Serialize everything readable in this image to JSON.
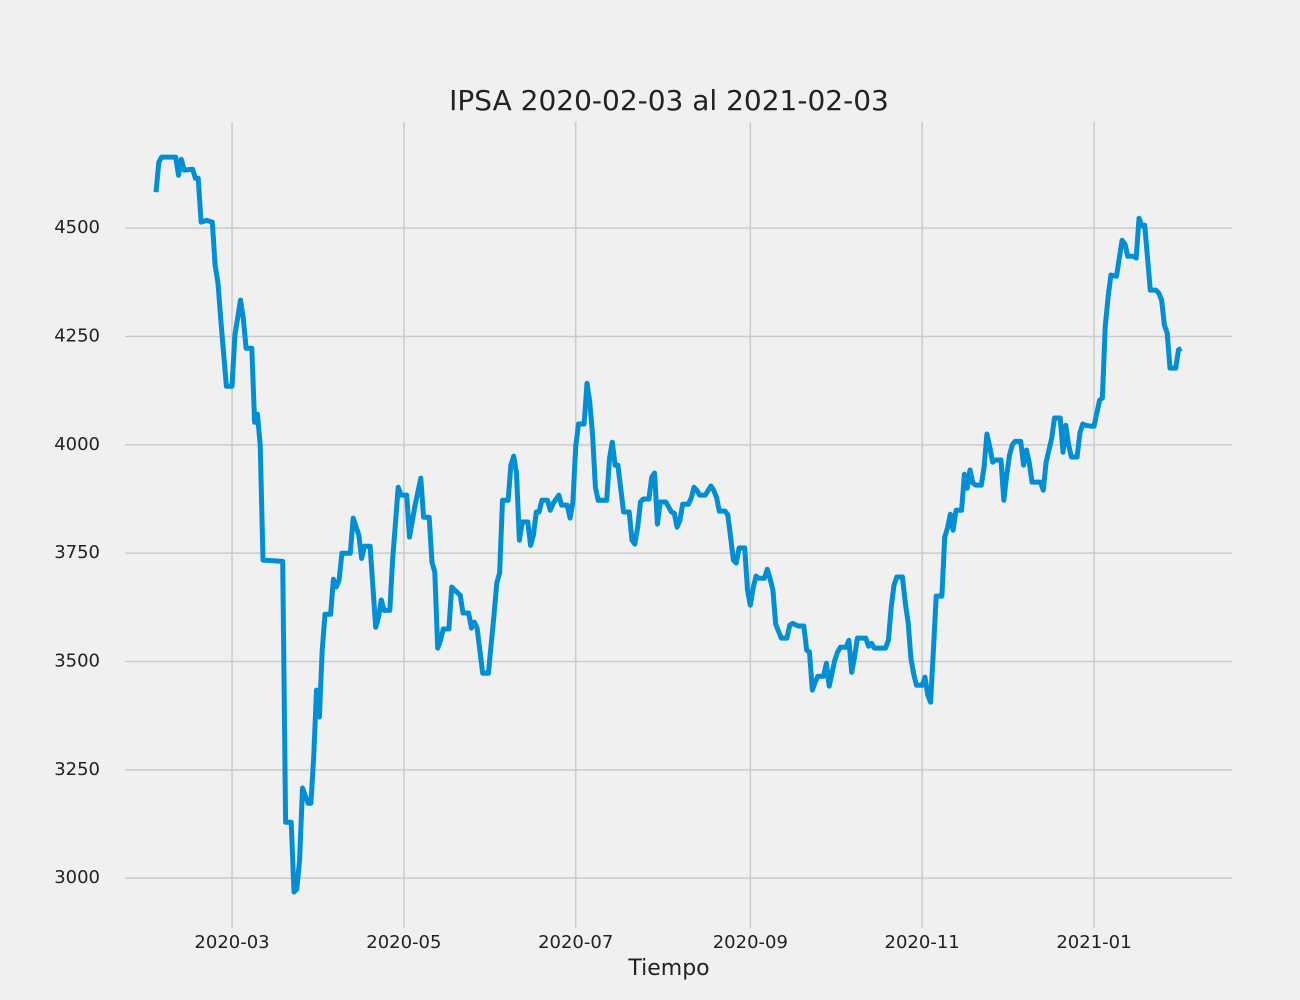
{
  "chart_data": {
    "type": "line",
    "title": "IPSA 2020-02-03 al 2021-02-03",
    "xlabel": "Tiempo",
    "x": [
      "2020-02-03",
      "2020-02-04",
      "2020-02-05",
      "2020-02-07",
      "2020-02-10",
      "2020-02-11",
      "2020-02-12",
      "2020-02-13",
      "2020-02-16",
      "2020-02-17",
      "2020-02-18",
      "2020-02-19",
      "2020-02-21",
      "2020-02-23",
      "2020-02-24",
      "2020-02-25",
      "2020-02-26",
      "2020-02-28",
      "2020-03-01",
      "2020-03-02",
      "2020-03-04",
      "2020-03-05",
      "2020-03-06",
      "2020-03-08",
      "2020-03-09",
      "2020-03-10",
      "2020-03-11",
      "2020-03-12",
      "2020-03-19",
      "2020-03-20",
      "2020-03-22",
      "2020-03-23",
      "2020-03-24",
      "2020-03-25",
      "2020-03-26",
      "2020-03-28",
      "2020-03-29",
      "2020-03-30",
      "2020-03-31",
      "2020-04-01",
      "2020-04-02",
      "2020-04-03",
      "2020-04-05",
      "2020-04-06",
      "2020-04-07",
      "2020-04-08",
      "2020-04-09",
      "2020-04-12",
      "2020-04-13",
      "2020-04-15",
      "2020-04-16",
      "2020-04-17",
      "2020-04-19",
      "2020-04-21",
      "2020-04-22",
      "2020-04-23",
      "2020-04-24",
      "2020-04-26",
      "2020-04-27",
      "2020-04-29",
      "2020-04-30",
      "2020-05-02",
      "2020-05-03",
      "2020-05-05",
      "2020-05-07",
      "2020-05-08",
      "2020-05-10",
      "2020-05-11",
      "2020-05-12",
      "2020-05-13",
      "2020-05-14",
      "2020-05-15",
      "2020-05-17",
      "2020-05-18",
      "2020-05-19",
      "2020-05-21",
      "2020-05-22",
      "2020-05-24",
      "2020-05-25",
      "2020-05-26",
      "2020-05-27",
      "2020-05-29",
      "2020-05-31",
      "2020-06-02",
      "2020-06-03",
      "2020-06-04",
      "2020-06-05",
      "2020-06-07",
      "2020-06-08",
      "2020-06-09",
      "2020-06-10",
      "2020-06-11",
      "2020-06-12",
      "2020-06-14",
      "2020-06-15",
      "2020-06-16",
      "2020-06-17",
      "2020-06-18",
      "2020-06-19",
      "2020-06-21",
      "2020-06-22",
      "2020-06-23",
      "2020-06-25",
      "2020-06-26",
      "2020-06-28",
      "2020-06-29",
      "2020-06-30",
      "2020-07-01",
      "2020-07-02",
      "2020-07-04",
      "2020-07-05",
      "2020-07-06",
      "2020-07-07",
      "2020-07-08",
      "2020-07-09",
      "2020-07-12",
      "2020-07-13",
      "2020-07-14",
      "2020-07-15",
      "2020-07-16",
      "2020-07-18",
      "2020-07-20",
      "2020-07-21",
      "2020-07-22",
      "2020-07-23",
      "2020-07-24",
      "2020-07-25",
      "2020-07-27",
      "2020-07-28",
      "2020-07-29",
      "2020-07-30",
      "2020-07-31",
      "2020-08-02",
      "2020-08-04",
      "2020-08-05",
      "2020-08-06",
      "2020-08-07",
      "2020-08-08",
      "2020-08-10",
      "2020-08-11",
      "2020-08-12",
      "2020-08-13",
      "2020-08-14",
      "2020-08-16",
      "2020-08-18",
      "2020-08-19",
      "2020-08-20",
      "2020-08-21",
      "2020-08-23",
      "2020-08-24",
      "2020-08-25",
      "2020-08-26",
      "2020-08-27",
      "2020-08-28",
      "2020-08-30",
      "2020-08-31",
      "2020-09-01",
      "2020-09-02",
      "2020-09-03",
      "2020-09-04",
      "2020-09-06",
      "2020-09-07",
      "2020-09-08",
      "2020-09-09",
      "2020-09-10",
      "2020-09-12",
      "2020-09-14",
      "2020-09-15",
      "2020-09-16",
      "2020-09-18",
      "2020-09-20",
      "2020-09-21",
      "2020-09-22",
      "2020-09-23",
      "2020-09-24",
      "2020-09-25",
      "2020-09-27",
      "2020-09-28",
      "2020-09-29",
      "2020-10-01",
      "2020-10-02",
      "2020-10-03",
      "2020-10-05",
      "2020-10-06",
      "2020-10-07",
      "2020-10-08",
      "2020-10-09",
      "2020-10-12",
      "2020-10-13",
      "2020-10-14",
      "2020-10-15",
      "2020-10-19",
      "2020-10-20",
      "2020-10-21",
      "2020-10-22",
      "2020-10-23",
      "2020-10-25",
      "2020-10-26",
      "2020-10-27",
      "2020-10-28",
      "2020-10-29",
      "2020-10-30",
      "2020-11-01",
      "2020-11-02",
      "2020-11-03",
      "2020-11-04",
      "2020-11-05",
      "2020-11-06",
      "2020-11-08",
      "2020-11-09",
      "2020-11-10",
      "2020-11-11",
      "2020-11-12",
      "2020-11-13",
      "2020-11-15",
      "2020-11-16",
      "2020-11-17",
      "2020-11-18",
      "2020-11-19",
      "2020-11-20",
      "2020-11-22",
      "2020-11-23",
      "2020-11-24",
      "2020-11-25",
      "2020-11-26",
      "2020-11-27",
      "2020-11-29",
      "2020-11-30",
      "2020-12-01",
      "2020-12-02",
      "2020-12-03",
      "2020-12-04",
      "2020-12-06",
      "2020-12-07",
      "2020-12-08",
      "2020-12-09",
      "2020-12-10",
      "2020-12-11",
      "2020-12-13",
      "2020-12-14",
      "2020-12-15",
      "2020-12-17",
      "2020-12-18",
      "2020-12-20",
      "2020-12-21",
      "2020-12-22",
      "2020-12-23",
      "2020-12-24",
      "2020-12-26",
      "2020-12-27",
      "2020-12-28",
      "2020-12-29",
      "2020-12-31",
      "2021-01-01",
      "2021-01-03",
      "2021-01-04",
      "2021-01-05",
      "2021-01-06",
      "2021-01-07",
      "2021-01-09",
      "2021-01-10",
      "2021-01-11",
      "2021-01-12",
      "2021-01-13",
      "2021-01-15",
      "2021-01-16",
      "2021-01-17",
      "2021-01-18",
      "2021-01-19",
      "2021-01-21",
      "2021-01-23",
      "2021-01-24",
      "2021-01-25",
      "2021-01-26",
      "2021-01-27",
      "2021-01-28",
      "2021-01-30",
      "2021-01-31",
      "2021-02-01"
    ],
    "series": [
      {
        "color": "#008fd5",
        "values": [
          4583,
          4652,
          4664,
          4664,
          4664,
          4622,
          4659,
          4634,
          4636,
          4615,
          4615,
          4514,
          4518,
          4514,
          4415,
          4373,
          4288,
          4135,
          4135,
          4253,
          4334,
          4292,
          4223,
          4223,
          4052,
          4071,
          4000,
          3734,
          3731,
          3129,
          3129,
          2968,
          2975,
          3042,
          3208,
          3173,
          3173,
          3279,
          3434,
          3372,
          3526,
          3609,
          3609,
          3690,
          3672,
          3688,
          3750,
          3750,
          3831,
          3792,
          3738,
          3766,
          3766,
          3579,
          3602,
          3642,
          3618,
          3618,
          3734,
          3902,
          3884,
          3884,
          3787,
          3861,
          3923,
          3833,
          3833,
          3729,
          3706,
          3531,
          3549,
          3575,
          3575,
          3672,
          3665,
          3653,
          3612,
          3612,
          3577,
          3591,
          3577,
          3473,
          3473,
          3607,
          3681,
          3704,
          3872,
          3872,
          3953,
          3974,
          3935,
          3780,
          3822,
          3822,
          3768,
          3792,
          3845,
          3845,
          3872,
          3872,
          3849,
          3865,
          3884,
          3861,
          3861,
          3831,
          3868,
          3995,
          4048,
          4048,
          4142,
          4098,
          4022,
          3902,
          3872,
          3872,
          3969,
          4006,
          3953,
          3953,
          3845,
          3845,
          3780,
          3771,
          3810,
          3868,
          3875,
          3875,
          3925,
          3935,
          3817,
          3868,
          3868,
          3845,
          3842,
          3810,
          3826,
          3863,
          3863,
          3877,
          3902,
          3895,
          3884,
          3884,
          3905,
          3895,
          3879,
          3847,
          3847,
          3838,
          3787,
          3734,
          3727,
          3762,
          3762,
          3665,
          3630,
          3669,
          3697,
          3692,
          3692,
          3713,
          3692,
          3665,
          3586,
          3554,
          3554,
          3584,
          3588,
          3582,
          3582,
          3526,
          3522,
          3434,
          3452,
          3466,
          3466,
          3496,
          3443,
          3503,
          3522,
          3533,
          3533,
          3549,
          3475,
          3510,
          3554,
          3554,
          3535,
          3542,
          3531,
          3531,
          3549,
          3625,
          3676,
          3695,
          3695,
          3635,
          3591,
          3508,
          3471,
          3445,
          3445,
          3464,
          3422,
          3406,
          3526,
          3651,
          3651,
          3787,
          3808,
          3840,
          3803,
          3849,
          3849,
          3932,
          3900,
          3942,
          3912,
          3907,
          3907,
          3949,
          4025,
          3995,
          3960,
          3965,
          3965,
          3872,
          3930,
          3976,
          4000,
          4008,
          4008,
          3953,
          3988,
          3960,
          3914,
          3914,
          3914,
          3895,
          3960,
          4015,
          4062,
          4062,
          3983,
          4045,
          4000,
          3972,
          3972,
          4027,
          4048,
          4045,
          4043,
          4043,
          4103,
          4108,
          4272,
          4341,
          4392,
          4389,
          4431,
          4472,
          4463,
          4435,
          4435,
          4431,
          4523,
          4505,
          4507,
          4357,
          4357,
          4350,
          4334,
          4276,
          4258,
          4177,
          4177,
          4219,
          4223
        ]
      }
    ],
    "xlim": [
      "2020-01-23",
      "2021-02-19"
    ],
    "xticks": [
      {
        "value": "2020-03-01",
        "label": "2020-03"
      },
      {
        "value": "2020-05-01",
        "label": "2020-05"
      },
      {
        "value": "2020-07-01",
        "label": "2020-07"
      },
      {
        "value": "2020-09-01",
        "label": "2020-09"
      },
      {
        "value": "2020-11-01",
        "label": "2020-11"
      },
      {
        "value": "2021-01-01",
        "label": "2021-01"
      }
    ],
    "ylim": [
      2885,
      4745
    ],
    "yticks": [
      3000,
      3250,
      3500,
      3750,
      4000,
      4250,
      4500
    ],
    "grid": true
  }
}
